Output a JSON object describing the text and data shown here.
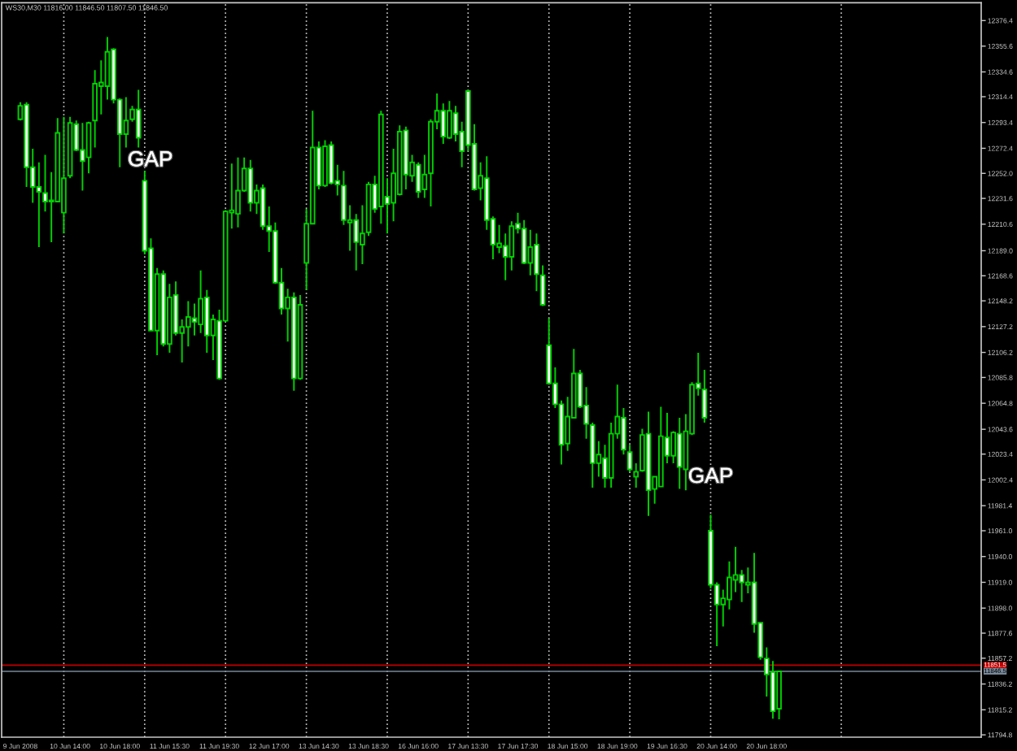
{
  "chart_data": {
    "type": "candlestick",
    "title": "WS30,M30 11816.00 11846.50 11807.50 11846.50",
    "categories": [
      "9 Jun 2008",
      null,
      null,
      null,
      null,
      null,
      null,
      null,
      "10 Jun 14:00",
      null,
      null,
      null,
      null,
      null,
      null,
      null,
      "10 Jun 18:00",
      null,
      null,
      null,
      null,
      null,
      null,
      null,
      "11 Jun 15:30",
      null,
      null,
      null,
      null,
      null,
      null,
      null,
      "11 Jun 19:30",
      null,
      null,
      null,
      null,
      null,
      null,
      null,
      "12 Jun 17:00",
      null,
      null,
      null,
      null,
      null,
      null,
      null,
      "13 Jun 14:30",
      null,
      null,
      null,
      null,
      null,
      null,
      null,
      "13 Jun 18:30",
      null,
      null,
      null,
      null,
      null,
      null,
      null,
      "16 Jun 16:00",
      null,
      null,
      null,
      null,
      null,
      null,
      null,
      "17 Jun 13:30",
      null,
      null,
      null,
      null,
      null,
      null,
      null,
      "17 Jun 17:30",
      null,
      null,
      null,
      null,
      null,
      null,
      null,
      "18 Jun 15:00",
      null,
      null,
      null,
      null,
      null,
      null,
      null,
      "18 Jun 19:00",
      null,
      null,
      null,
      null,
      null,
      null,
      null,
      "19 Jun 16:30",
      null,
      null,
      null,
      null,
      null,
      null,
      null,
      "20 Jun 14:00",
      null,
      null,
      null,
      null,
      null,
      null,
      null,
      "20 Jun 18:00",
      null,
      null,
      null,
      null,
      null,
      null,
      null,
      null,
      null,
      null,
      null,
      null,
      null,
      null,
      null,
      null,
      null,
      null,
      null,
      null,
      null,
      null,
      null,
      null,
      null,
      null,
      null,
      null,
      null,
      null,
      null,
      null,
      null,
      null
    ],
    "ohlc": [
      [
        12296,
        12310,
        12295,
        12307
      ],
      [
        12308,
        12310,
        12241,
        12257
      ],
      [
        12257,
        12272,
        12228,
        12241
      ],
      [
        12241,
        12261,
        12192,
        12237
      ],
      [
        12236,
        12267,
        12221,
        12229
      ],
      [
        12230,
        12253,
        12196,
        12229
      ],
      [
        12229,
        12297,
        12229,
        12285
      ],
      [
        12220,
        12298,
        12203,
        12248
      ],
      [
        12250,
        12298,
        12248,
        12293
      ],
      [
        12292,
        12295,
        12270,
        12271
      ],
      [
        12271,
        12293,
        12238,
        12262
      ],
      [
        12265,
        12294,
        12252,
        12293
      ],
      [
        12295,
        12336,
        12273,
        12325
      ],
      [
        12323,
        12344,
        12300,
        12326
      ],
      [
        12323,
        12363,
        12312,
        12351
      ],
      [
        12353,
        12354,
        12309,
        12312
      ],
      [
        12312,
        12313,
        12257,
        12284
      ],
      [
        12284,
        12314,
        12273,
        12295
      ],
      [
        12296,
        12307,
        12294,
        12304
      ],
      [
        12304,
        12320,
        12273,
        12281
      ],
      [
        12246,
        12254,
        12186,
        12189
      ],
      [
        12191,
        12199,
        12124,
        12124
      ],
      [
        12124,
        12175,
        12104,
        12170
      ],
      [
        12170,
        12173,
        12111,
        12113
      ],
      [
        12113,
        12162,
        12106,
        12151
      ],
      [
        12153,
        12164,
        12120,
        12122
      ],
      [
        12122,
        12133,
        12098,
        12127
      ],
      [
        12127,
        12148,
        12111,
        12135
      ],
      [
        12134,
        12146,
        12120,
        12131
      ],
      [
        12129,
        12173,
        12122,
        12150
      ],
      [
        12151,
        12157,
        12106,
        12120
      ],
      [
        12120,
        12137,
        12100,
        12133
      ],
      [
        12132,
        12141,
        12084,
        12085
      ],
      [
        12132,
        12222,
        12131,
        12221
      ],
      [
        12220,
        12260,
        12207,
        12222
      ],
      [
        12219,
        12265,
        12208,
        12238
      ],
      [
        12238,
        12265,
        12237,
        12256
      ],
      [
        12256,
        12263,
        12221,
        12228
      ],
      [
        12228,
        12243,
        12219,
        12238
      ],
      [
        12240,
        12243,
        12206,
        12209
      ],
      [
        12209,
        12225,
        12188,
        12205
      ],
      [
        12205,
        12212,
        12162,
        12163
      ],
      [
        12163,
        12175,
        12137,
        12142
      ],
      [
        12142,
        12158,
        12115,
        12151
      ],
      [
        12151,
        12155,
        12075,
        12085
      ],
      [
        12085,
        12153,
        12084,
        12145
      ],
      [
        12179,
        12223,
        12157,
        12211
      ],
      [
        12211,
        12303,
        12211,
        12273
      ],
      [
        12273,
        12278,
        12239,
        12242
      ],
      [
        12242,
        12279,
        12241,
        12274
      ],
      [
        12275,
        12278,
        12243,
        12244
      ],
      [
        12246,
        12259,
        12234,
        12243
      ],
      [
        12242,
        12254,
        12210,
        12214
      ],
      [
        12212,
        12226,
        12189,
        12214
      ],
      [
        12214,
        12219,
        12173,
        12196
      ],
      [
        12194,
        12226,
        12178,
        12203
      ],
      [
        12204,
        12245,
        12201,
        12243
      ],
      [
        12243,
        12250,
        12220,
        12223
      ],
      [
        12225,
        12303,
        12211,
        12300
      ],
      [
        12233,
        12248,
        12203,
        12227
      ],
      [
        12228,
        12272,
        12213,
        12252
      ],
      [
        12235,
        12291,
        12234,
        12286
      ],
      [
        12287,
        12290,
        12239,
        12251
      ],
      [
        12250,
        12267,
        12245,
        12261
      ],
      [
        12259,
        12261,
        12232,
        12237
      ],
      [
        12239,
        12267,
        12232,
        12251
      ],
      [
        12252,
        12296,
        12225,
        12294
      ],
      [
        12294,
        12317,
        12288,
        12303
      ],
      [
        12303,
        12309,
        12276,
        12282
      ],
      [
        12281,
        12311,
        12280,
        12303
      ],
      [
        12301,
        12307,
        12278,
        12284
      ],
      [
        12286,
        12294,
        12257,
        12270
      ],
      [
        12319,
        12320,
        12270,
        12275
      ],
      [
        12276,
        12292,
        12238,
        12239
      ],
      [
        12240,
        12261,
        12230,
        12250
      ],
      [
        12248,
        12266,
        12206,
        12214
      ],
      [
        12215,
        12217,
        12182,
        12194
      ],
      [
        12192,
        12210,
        12187,
        12195
      ],
      [
        12193,
        12203,
        12165,
        12184
      ],
      [
        12184,
        12213,
        12173,
        12209
      ],
      [
        12211,
        12220,
        12203,
        12207
      ],
      [
        12207,
        12214,
        12178,
        12179
      ],
      [
        12179,
        12206,
        12169,
        12192
      ],
      [
        12194,
        12203,
        12156,
        12170
      ],
      [
        12169,
        12177,
        12144,
        12145
      ],
      [
        12112,
        12134,
        12080,
        12081
      ],
      [
        12081,
        12094,
        12061,
        12064
      ],
      [
        12064,
        12067,
        12015,
        12031
      ],
      [
        12032,
        12070,
        12026,
        12054
      ],
      [
        12053,
        12109,
        12053,
        12089
      ],
      [
        12089,
        12092,
        12061,
        12062
      ],
      [
        12063,
        12078,
        12036,
        12048
      ],
      [
        12047,
        12049,
        11996,
        12016
      ],
      [
        12016,
        12034,
        12005,
        12023
      ],
      [
        12020,
        12031,
        11996,
        12004
      ],
      [
        12004,
        12049,
        11996,
        12040
      ],
      [
        12040,
        12080,
        12036,
        12054
      ],
      [
        12053,
        12061,
        12023,
        12027
      ],
      [
        12025,
        12031,
        12009,
        12011
      ],
      [
        12005,
        12016,
        11996,
        12009
      ],
      [
        12010,
        12044,
        12009,
        12039
      ],
      [
        12040,
        12058,
        11973,
        11994
      ],
      [
        11995,
        12005,
        11983,
        12005
      ],
      [
        11997,
        12062,
        11997,
        12038
      ],
      [
        12037,
        12057,
        12016,
        12022
      ],
      [
        12022,
        12042,
        12016,
        12041
      ],
      [
        12040,
        12053,
        11995,
        12013
      ],
      [
        12011,
        12056,
        11994,
        12042
      ],
      [
        12040,
        12082,
        12039,
        12080
      ],
      [
        12081,
        12106,
        12071,
        12077
      ],
      [
        12076,
        12092,
        12049,
        12053
      ],
      [
        11961,
        11974,
        11914,
        11917
      ],
      [
        11917,
        11919,
        11867,
        11901
      ],
      [
        11901,
        11913,
        11883,
        11906
      ],
      [
        11905,
        11936,
        11897,
        11923
      ],
      [
        11921,
        11948,
        11911,
        11925
      ],
      [
        11925,
        11929,
        11903,
        11919
      ],
      [
        11917,
        11931,
        11910,
        11919
      ],
      [
        11919,
        11943,
        11878,
        11885
      ],
      [
        11886,
        11886,
        11856,
        11858
      ],
      [
        11857,
        11866,
        11826,
        11844
      ],
      [
        11846,
        11855,
        11808,
        11814
      ],
      [
        11816.0,
        11846.5,
        11807.5,
        11846.5
      ],
      null,
      null,
      null,
      null,
      null,
      null,
      null,
      null,
      null,
      null,
      null,
      null,
      null,
      null,
      null,
      null,
      null,
      null,
      null,
      null,
      null,
      null,
      null,
      null,
      null,
      null,
      null,
      null,
      null,
      null,
      null,
      null
    ],
    "color": "#00d000",
    "colors": [
      "#000000",
      "#ffffff",
      "#ffffff",
      "#ffffff",
      "#ffffff",
      "#ffffff",
      "#000000",
      "#000000",
      "#000000",
      "#ffffff",
      "#ffffff",
      "#000000",
      "#000000",
      "#000000",
      "#000000",
      "#ffffff",
      "#ffffff",
      "#000000",
      "#000000",
      "#ffffff",
      "#ffffff",
      "#ffffff",
      "#000000",
      "#ffffff",
      "#000000",
      "#ffffff",
      "#000000",
      "#000000",
      "#ffffff",
      "#000000",
      "#ffffff",
      "#000000",
      "#ffffff",
      "#000000",
      "#000000",
      "#000000",
      "#000000",
      "#ffffff",
      "#000000",
      "#ffffff",
      "#ffffff",
      "#ffffff",
      "#ffffff",
      "#000000",
      "#ffffff",
      "#000000",
      "#000000",
      "#000000",
      "#ffffff",
      "#000000",
      "#ffffff",
      "#ffffff",
      "#ffffff",
      "#000000",
      "#ffffff",
      "#000000",
      "#000000",
      "#ffffff",
      "#000000",
      "#ffffff",
      "#000000",
      "#000000",
      "#ffffff",
      "#000000",
      "#ffffff",
      "#000000",
      "#000000",
      "#000000",
      "#ffffff",
      "#000000",
      "#ffffff",
      "#ffffff",
      "#ffffff",
      "#ffffff",
      "#000000",
      "#ffffff",
      "#ffffff",
      "#000000",
      "#ffffff",
      "#000000",
      "#ffffff",
      "#ffffff",
      "#000000",
      "#ffffff",
      "#ffffff",
      "#ffffff",
      "#ffffff",
      "#ffffff",
      "#000000",
      "#000000",
      "#ffffff",
      "#ffffff",
      "#ffffff",
      "#000000",
      "#ffffff",
      "#000000",
      "#000000",
      "#ffffff",
      "#ffffff",
      "#000000",
      "#000000",
      "#ffffff",
      "#000000",
      "#000000",
      "#ffffff",
      "#000000",
      "#ffffff",
      "#000000",
      "#000000",
      "#ffffff",
      "#ffffff",
      "#ffffff",
      "#ffffff",
      "#000000",
      "#000000",
      "#000000",
      "#ffffff",
      "#000000",
      "#ffffff",
      "#ffffff",
      "#ffffff",
      "#ffffff",
      "#000000",
      null,
      null,
      null,
      null,
      null,
      null,
      null,
      null,
      null,
      null,
      null,
      null,
      null,
      null,
      null,
      null,
      null,
      null,
      null,
      null,
      null,
      null,
      null,
      null,
      null,
      null,
      null,
      null,
      null,
      null,
      null,
      null
    ],
    "ylim": [
      11792.9,
      12390.9
    ],
    "yticks": [
      12376.4,
      12355.6,
      12334.6,
      12314.4,
      12293.4,
      12272.4,
      {
        "value": 12252,
        "label": "12252.0"
      },
      12231.6,
      12210.6,
      {
        "value": 12189,
        "label": "12189.0"
      },
      12168.6,
      12148.2,
      12127.2,
      12106.2,
      12085.8,
      12064.8,
      12043.6,
      12023.4,
      12002.4,
      11981.4,
      {
        "value": 11961,
        "label": "11961.0"
      },
      {
        "value": 11940,
        "label": "11940.0"
      },
      {
        "value": 11919,
        "label": "11919.0"
      },
      {
        "value": 11898,
        "label": "11898.0"
      },
      11877.6,
      11857.2,
      11836.2,
      11815.2,
      11794.8
    ],
    "ref_lines": [
      {
        "axis": "y",
        "value": 11851.5,
        "label": "11851.5",
        "color": "#c00000"
      },
      {
        "axis": "y",
        "value": 11846.5,
        "label": "11846.5",
        "color": "#778899"
      }
    ],
    "annotations": [
      "GAP",
      "GAP"
    ]
  }
}
